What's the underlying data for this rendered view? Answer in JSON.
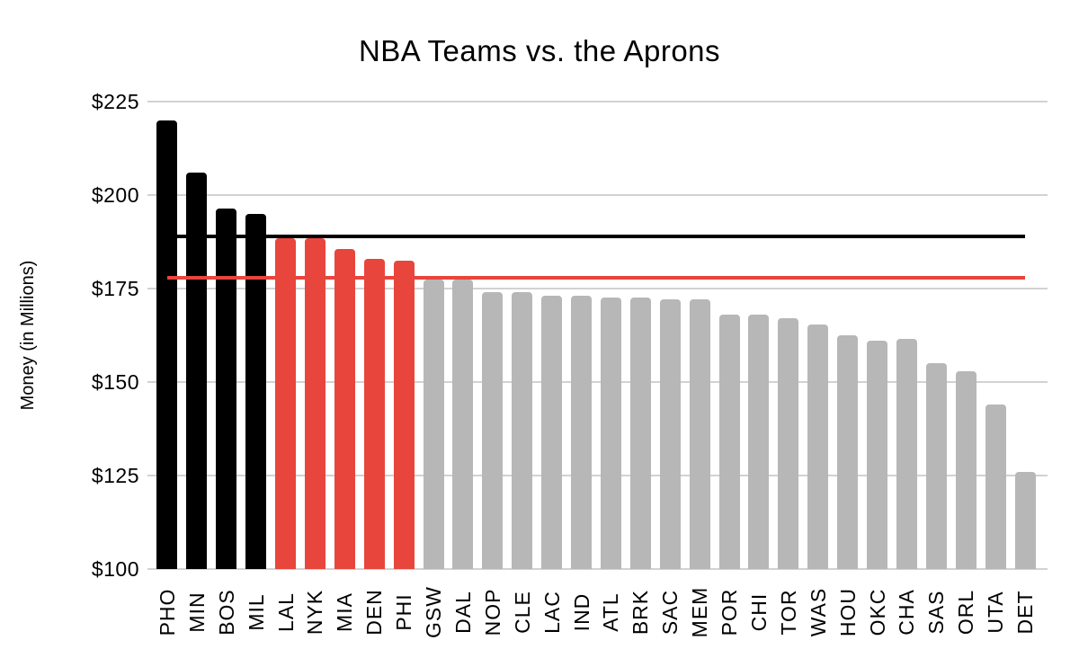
{
  "chart_data": {
    "type": "bar",
    "title": "NBA Teams vs. the Aprons",
    "xlabel": "",
    "ylabel": "Money (in Millions)",
    "ylim": [
      100,
      225
    ],
    "yticks": [
      100,
      125,
      150,
      175,
      200,
      225
    ],
    "ytick_labels": [
      "$100",
      "$125",
      "$150",
      "$175",
      "$200",
      "$225"
    ],
    "grid": true,
    "legend_position": "none",
    "x_tick_rotation": -90,
    "background_color": "#FFFFFF",
    "gridline_color": "#D2D2D2",
    "palette": {
      "over_second_apron": "#000000",
      "between_aprons": "#E8453C",
      "under_first_apron": "#B7B7B7"
    },
    "teams": [
      {
        "code": "PHO",
        "value": 220,
        "group": "over_second_apron"
      },
      {
        "code": "MIN",
        "value": 206,
        "group": "over_second_apron"
      },
      {
        "code": "BOS",
        "value": 196.5,
        "group": "over_second_apron"
      },
      {
        "code": "MIL",
        "value": 195,
        "group": "over_second_apron"
      },
      {
        "code": "LAL",
        "value": 188.5,
        "group": "between_aprons"
      },
      {
        "code": "NYK",
        "value": 188.5,
        "group": "between_aprons"
      },
      {
        "code": "MIA",
        "value": 185.5,
        "group": "between_aprons"
      },
      {
        "code": "DEN",
        "value": 183,
        "group": "between_aprons"
      },
      {
        "code": "PHI",
        "value": 182.5,
        "group": "between_aprons"
      },
      {
        "code": "GSW",
        "value": 177.5,
        "group": "under_first_apron"
      },
      {
        "code": "DAL",
        "value": 177.5,
        "group": "under_first_apron"
      },
      {
        "code": "NOP",
        "value": 174,
        "group": "under_first_apron"
      },
      {
        "code": "CLE",
        "value": 174,
        "group": "under_first_apron"
      },
      {
        "code": "LAC",
        "value": 173,
        "group": "under_first_apron"
      },
      {
        "code": "IND",
        "value": 173,
        "group": "under_first_apron"
      },
      {
        "code": "ATL",
        "value": 172.5,
        "group": "under_first_apron"
      },
      {
        "code": "BRK",
        "value": 172.5,
        "group": "under_first_apron"
      },
      {
        "code": "SAC",
        "value": 172,
        "group": "under_first_apron"
      },
      {
        "code": "MEM",
        "value": 172,
        "group": "under_first_apron"
      },
      {
        "code": "POR",
        "value": 168,
        "group": "under_first_apron"
      },
      {
        "code": "CHI",
        "value": 168,
        "group": "under_first_apron"
      },
      {
        "code": "TOR",
        "value": 167,
        "group": "under_first_apron"
      },
      {
        "code": "WAS",
        "value": 165.5,
        "group": "under_first_apron"
      },
      {
        "code": "HOU",
        "value": 162.5,
        "group": "under_first_apron"
      },
      {
        "code": "OKC",
        "value": 161,
        "group": "under_first_apron"
      },
      {
        "code": "CHA",
        "value": 161.5,
        "group": "under_first_apron"
      },
      {
        "code": "SAS",
        "value": 155,
        "group": "under_first_apron"
      },
      {
        "code": "ORL",
        "value": 153,
        "group": "under_first_apron"
      },
      {
        "code": "UTA",
        "value": 144,
        "group": "under_first_apron"
      },
      {
        "code": "DET",
        "value": 126,
        "group": "under_first_apron"
      }
    ],
    "reference_lines": [
      {
        "id": "first-apron",
        "value": 178,
        "color": "#E8453C"
      },
      {
        "id": "second-apron",
        "value": 189,
        "color": "#000000"
      }
    ]
  }
}
